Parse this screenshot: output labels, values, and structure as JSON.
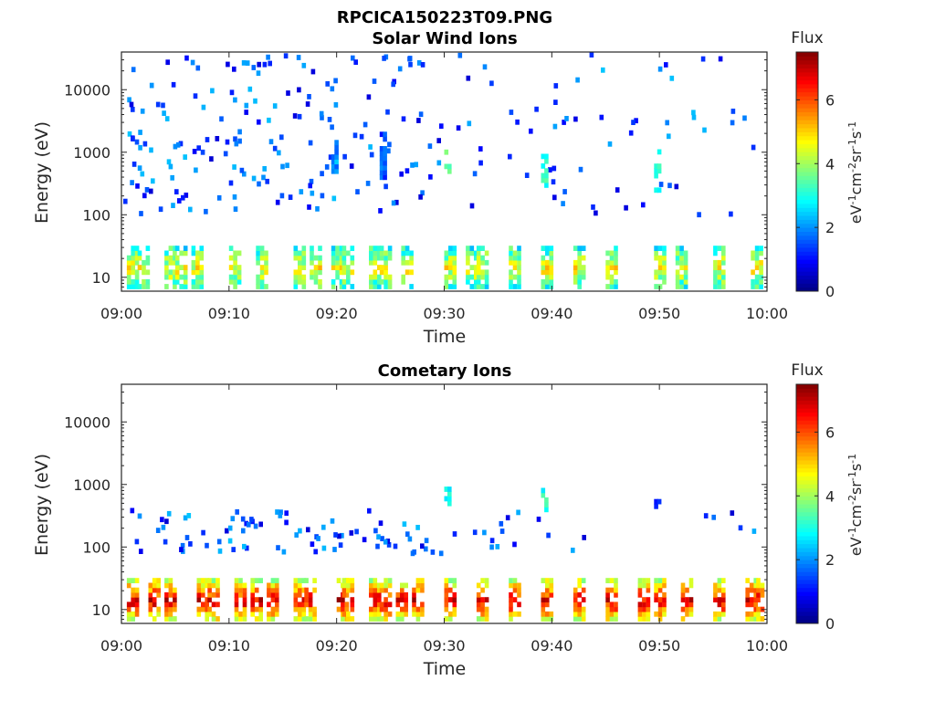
{
  "figure_title": "RPCICA150223T09.PNG",
  "colors": {
    "axes": "#262626",
    "colormap": [
      "#00007f",
      "#0000ff",
      "#007fff",
      "#00ffff",
      "#7fff7f",
      "#ffff00",
      "#ff7f00",
      "#ff0000",
      "#7f0000"
    ]
  },
  "chart_data": [
    {
      "type": "heatmap",
      "title": "Solar Wind Ions",
      "xlabel": "Time",
      "ylabel": "Energy (eV)",
      "x_ticks": [
        "09:00",
        "09:10",
        "09:20",
        "09:30",
        "09:40",
        "09:50",
        "10:00"
      ],
      "x_range": [
        "09:00",
        "10:00"
      ],
      "y_scale": "log",
      "y_ticks": [
        "10",
        "100",
        "1000",
        "10000"
      ],
      "y_range": [
        6,
        40000
      ],
      "colorbar": {
        "title": "Flux",
        "label": "eV-1cm-2sr-1s-1",
        "ticks": [
          "0",
          "2",
          "4",
          "6"
        ],
        "range": [
          0,
          7.5
        ]
      },
      "low_energy_band_bursts_min": [
        0.5,
        1.5,
        4,
        5,
        6.5,
        10,
        12.5,
        16,
        17.5,
        19.5,
        20.5,
        23,
        24,
        26,
        30,
        32,
        33,
        36,
        39,
        42,
        45,
        49.5,
        51.5,
        55,
        58.5
      ],
      "mid_energy_bursts": [
        {
          "t_min": 19.5,
          "e_low": 500,
          "e_high": 2000,
          "v": 2
        },
        {
          "t_min": 24,
          "e_low": 400,
          "e_high": 2000,
          "v": 1.5
        },
        {
          "t_min": 30,
          "e_low": 500,
          "e_high": 1200,
          "v": 3.5
        },
        {
          "t_min": 39,
          "e_low": 300,
          "e_high": 900,
          "v": 3
        },
        {
          "t_min": 49.5,
          "e_low": 250,
          "e_high": 1200,
          "v": 3
        }
      ]
    },
    {
      "type": "heatmap",
      "title": "Cometary Ions",
      "xlabel": "Time",
      "ylabel": "Energy (eV)",
      "x_ticks": [
        "09:00",
        "09:10",
        "09:20",
        "09:30",
        "09:40",
        "09:50",
        "10:00"
      ],
      "x_range": [
        "09:00",
        "10:00"
      ],
      "y_scale": "log",
      "y_ticks": [
        "10",
        "100",
        "1000",
        "10000"
      ],
      "y_range": [
        6,
        40000
      ],
      "colorbar": {
        "title": "Flux",
        "label": "eV-1cm-2sr-1s-1",
        "ticks": [
          "0",
          "2",
          "4",
          "6"
        ],
        "range": [
          0,
          7.5
        ]
      },
      "low_energy_band_bursts_min": [
        0.5,
        2.5,
        4,
        7,
        8,
        10.5,
        12,
        13.5,
        16,
        17,
        20,
        20.5,
        23,
        24,
        25.5,
        27,
        30,
        33,
        36,
        39,
        42,
        45,
        48,
        49.5,
        52,
        55,
        58,
        59
      ],
      "mid_energy_bursts": [
        {
          "t_min": 30,
          "e_low": 500,
          "e_high": 1000,
          "v": 3
        },
        {
          "t_min": 39,
          "e_low": 400,
          "e_high": 900,
          "v": 3
        },
        {
          "t_min": 49.5,
          "e_low": 450,
          "e_high": 550,
          "v": 1.5
        }
      ]
    }
  ]
}
